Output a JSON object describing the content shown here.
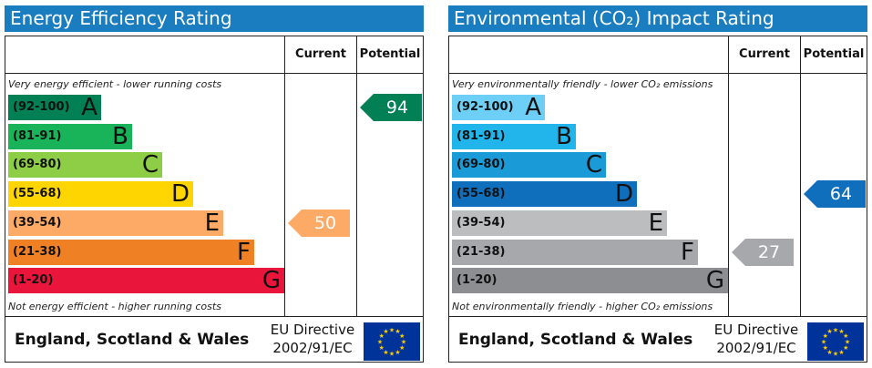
{
  "chart_data": [
    {
      "type": "bar",
      "title": "Energy Efficiency Rating",
      "columns": [
        "Current",
        "Potential"
      ],
      "top_note": "Very energy efficient - lower running costs",
      "bottom_note": "Not energy efficient - higher running costs",
      "bands": [
        {
          "range": "(92-100)",
          "letter": "A",
          "min": 92,
          "max": 100,
          "color": "#008054"
        },
        {
          "range": "(81-91)",
          "letter": "B",
          "min": 81,
          "max": 91,
          "color": "#19b459"
        },
        {
          "range": "(69-80)",
          "letter": "C",
          "min": 69,
          "max": 80,
          "color": "#8dce46"
        },
        {
          "range": "(55-68)",
          "letter": "D",
          "min": 55,
          "max": 68,
          "color": "#ffd500"
        },
        {
          "range": "(39-54)",
          "letter": "E",
          "min": 39,
          "max": 54,
          "color": "#fcaa65"
        },
        {
          "range": "(21-38)",
          "letter": "F",
          "min": 21,
          "max": 38,
          "color": "#ef8023"
        },
        {
          "range": "(1-20)",
          "letter": "G",
          "min": 1,
          "max": 20,
          "color": "#e9153b"
        }
      ],
      "current": {
        "value": 50,
        "color": "#fcaa65"
      },
      "potential": {
        "value": 94,
        "color": "#008054"
      },
      "footer": {
        "region": "England, Scotland & Wales",
        "directive_line1": "EU Directive",
        "directive_line2": "2002/91/EC"
      }
    },
    {
      "type": "bar",
      "title": "Environmental (CO₂) Impact Rating",
      "columns": [
        "Current",
        "Potential"
      ],
      "top_note": "Very environmentally friendly - lower CO₂ emissions",
      "bottom_note": "Not environmentally friendly - higher CO₂ emissions",
      "bands": [
        {
          "range": "(92-100)",
          "letter": "A",
          "min": 92,
          "max": 100,
          "color": "#6ecff6"
        },
        {
          "range": "(81-91)",
          "letter": "B",
          "min": 81,
          "max": 91,
          "color": "#22b5eb"
        },
        {
          "range": "(69-80)",
          "letter": "C",
          "min": 69,
          "max": 80,
          "color": "#1a9ad7"
        },
        {
          "range": "(55-68)",
          "letter": "D",
          "min": 55,
          "max": 68,
          "color": "#0f6fbd"
        },
        {
          "range": "(39-54)",
          "letter": "E",
          "min": 39,
          "max": 54,
          "color": "#bbbdbf"
        },
        {
          "range": "(21-38)",
          "letter": "F",
          "min": 21,
          "max": 38,
          "color": "#a6a8ab"
        },
        {
          "range": "(1-20)",
          "letter": "G",
          "min": 1,
          "max": 20,
          "color": "#8c8e91"
        }
      ],
      "current": {
        "value": 27,
        "color": "#a6a8ab"
      },
      "potential": {
        "value": 64,
        "color": "#0f6fbd"
      },
      "footer": {
        "region": "England, Scotland & Wales",
        "directive_line1": "EU Directive",
        "directive_line2": "2002/91/EC"
      }
    }
  ]
}
